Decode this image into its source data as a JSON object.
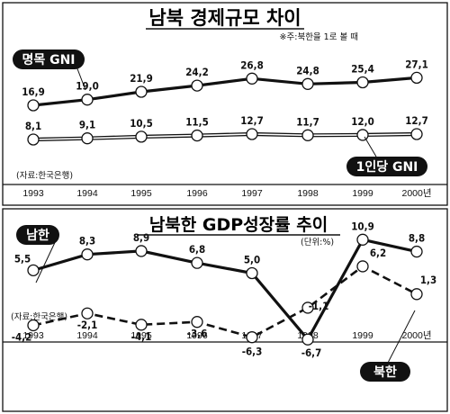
{
  "panels": [
    {
      "title": "남북 경제규모 차이",
      "subtitle": "※주:북한을 1로 볼 때",
      "source": "(자료:한국은행)",
      "chart_data": {
        "type": "line",
        "categories": [
          "1993",
          "1994",
          "1995",
          "1996",
          "1997",
          "1998",
          "1999",
          "2000년"
        ],
        "series": [
          {
            "name": "명목 GNI",
            "values": [
              16.9,
              19.0,
              21.9,
              24.2,
              26.8,
              24.8,
              25.4,
              27.1
            ],
            "labels": [
              "16,9",
              "19,0",
              "21,9",
              "24,2",
              "26,8",
              "24,8",
              "25,4",
              "27,1"
            ]
          },
          {
            "name": "1인당 GNI",
            "values": [
              8.1,
              9.1,
              10.5,
              11.5,
              12.7,
              11.7,
              12.0,
              12.7
            ],
            "labels": [
              "8,1",
              "9,1",
              "10,5",
              "11,5",
              "12,7",
              "11,7",
              "12,0",
              "12,7"
            ]
          }
        ]
      }
    },
    {
      "title": "남북한 GDP성장률 추이",
      "unit": "(단위:%)",
      "source": "(자료:한국은행)",
      "chart_data": {
        "type": "line",
        "categories": [
          "1993",
          "1994",
          "1995",
          "1996",
          "1997",
          "1998",
          "1999",
          "2000년"
        ],
        "series": [
          {
            "name": "남한",
            "values": [
              5.5,
              8.3,
              8.9,
              6.8,
              5.0,
              -6.7,
              10.9,
              8.8
            ],
            "labels": [
              "5,5",
              "8,3",
              "8,9",
              "6,8",
              "5,0",
              "-6,7",
              "10,9",
              "8,8"
            ]
          },
          {
            "name": "북한",
            "values": [
              -4.2,
              -2.1,
              -4.1,
              -3.6,
              -6.3,
              -1.1,
              6.2,
              1.3
            ],
            "labels": [
              "-4,2",
              "-2,1",
              "-4,1",
              "-3,6",
              "-6,3",
              "-1,1",
              "6,2",
              "1,3"
            ]
          }
        ]
      }
    }
  ],
  "colors": {
    "line": "#111111",
    "marker_fill": "#ffffff",
    "label_bg": "#111111",
    "label_text": "#ffffff"
  }
}
